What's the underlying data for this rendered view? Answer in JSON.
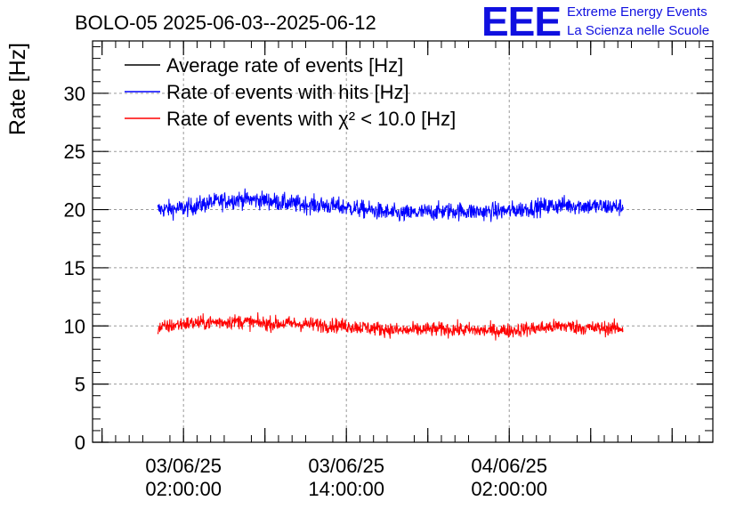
{
  "chart_data": {
    "type": "line",
    "title": "BOLO-05 2025-06-03--2025-06-12",
    "ylabel": "Rate [Hz]",
    "xlabel": "",
    "ylim": [
      0,
      34.5
    ],
    "y_ticks": [
      0,
      5,
      10,
      15,
      20,
      25,
      30
    ],
    "x_ticks": [
      {
        "line1": "03/06/25",
        "line2": "02:00:00",
        "hours": 2
      },
      {
        "line1": "03/06/25",
        "line2": "14:00:00",
        "hours": 14
      },
      {
        "line1": "04/06/25",
        "line2": "02:00:00",
        "hours": 26
      }
    ],
    "grid": true,
    "legend_position": "top-left",
    "legend": [
      {
        "label": "Average rate of events [Hz]",
        "color": "#000000"
      },
      {
        "label": "Rate of events with hits [Hz]",
        "color": "#0000ff"
      },
      {
        "label": "Rate of events with χ² < 10.0 [Hz]",
        "color": "#ff0000"
      }
    ],
    "series": [
      {
        "name": "Rate of events with hits [Hz]",
        "color": "#0000ff",
        "noise": 0.55,
        "points": [
          [
            0.1,
            20.0
          ],
          [
            2.0,
            20.1
          ],
          [
            4.0,
            20.6
          ],
          [
            6.0,
            20.9
          ],
          [
            8.0,
            20.8
          ],
          [
            10.0,
            20.5
          ],
          [
            12.0,
            20.4
          ],
          [
            14.0,
            20.2
          ],
          [
            16.0,
            19.9
          ],
          [
            18.0,
            19.6
          ],
          [
            20.0,
            19.8
          ],
          [
            22.0,
            19.9
          ],
          [
            24.0,
            19.8
          ],
          [
            26.0,
            19.9
          ],
          [
            28.0,
            20.2
          ],
          [
            30.0,
            20.4
          ],
          [
            32.0,
            20.3
          ],
          [
            34.4,
            20.2
          ]
        ]
      },
      {
        "name": "Rate of events with χ² < 10.0 [Hz]",
        "color": "#ff0000",
        "noise": 0.45,
        "points": [
          [
            0.1,
            9.8
          ],
          [
            2.0,
            10.2
          ],
          [
            4.0,
            10.3
          ],
          [
            6.0,
            10.4
          ],
          [
            8.0,
            10.2
          ],
          [
            10.0,
            10.2
          ],
          [
            12.0,
            10.1
          ],
          [
            14.0,
            10.0
          ],
          [
            16.0,
            9.8
          ],
          [
            18.0,
            9.6
          ],
          [
            20.0,
            9.7
          ],
          [
            22.0,
            9.7
          ],
          [
            24.0,
            9.6
          ],
          [
            26.0,
            9.6
          ],
          [
            28.0,
            9.8
          ],
          [
            30.0,
            10.0
          ],
          [
            32.0,
            9.8
          ],
          [
            34.4,
            9.8
          ]
        ]
      }
    ]
  },
  "logo": {
    "mark": "EEE",
    "line1": "Extreme Energy Events",
    "line2": "La Scienza nelle Scuole"
  }
}
